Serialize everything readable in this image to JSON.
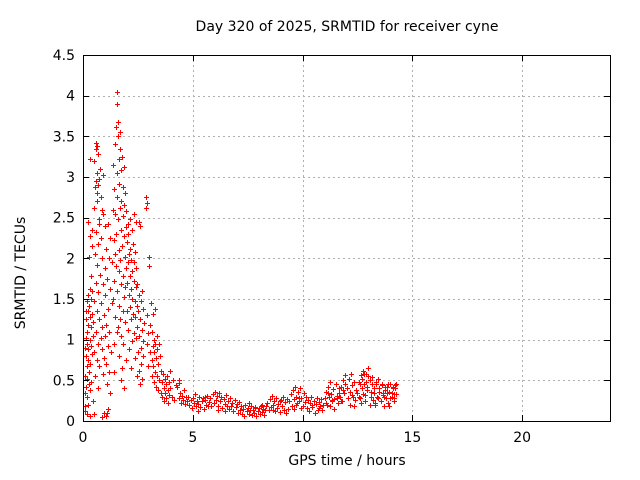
{
  "chart_data": {
    "type": "scatter",
    "title": "Day 320 of 2025, SRMTID for receiver cyne",
    "xlabel": "GPS time / hours",
    "ylabel": "SRMTID / TECUs",
    "xlim": [
      0,
      24
    ],
    "ylim": [
      0,
      4.5
    ],
    "xticks": [
      0,
      5,
      10,
      15,
      20
    ],
    "yticks": [
      0,
      0.5,
      1,
      1.5,
      2,
      2.5,
      3,
      3.5,
      4,
      4.5
    ],
    "grid": "dashed",
    "legend": "none",
    "marker": "plus",
    "colors": {
      "marker": "#ff0000",
      "grid": "#b0b0b0",
      "axis": "#000000",
      "background": "#ffffff",
      "text": "#000000"
    },
    "points": [
      [
        0.07,
        0.12
      ],
      [
        0.08,
        0.35
      ],
      [
        0.08,
        0.9
      ],
      [
        0.1,
        0.55
      ],
      [
        0.1,
        0.18
      ],
      [
        0.12,
        0.8
      ],
      [
        0.13,
        1.02
      ],
      [
        0.13,
        1.35
      ],
      [
        0.14,
        0.42
      ],
      [
        0.15,
        1.25
      ],
      [
        0.16,
        0.68
      ],
      [
        0.17,
        1.48
      ],
      [
        0.18,
        0.3
      ],
      [
        0.18,
        0.95
      ],
      [
        0.18,
        0.08
      ],
      [
        0.2,
        1.1
      ],
      [
        0.2,
        0.52
      ],
      [
        0.21,
        0.2
      ],
      [
        0.22,
        1.35
      ],
      [
        0.22,
        0.75
      ],
      [
        0.23,
        1.55
      ],
      [
        0.24,
        2.45
      ],
      [
        0.25,
        0.88
      ],
      [
        0.25,
        1.18
      ],
      [
        0.26,
        0.45
      ],
      [
        0.27,
        0.6
      ],
      [
        0.27,
        1.42
      ],
      [
        0.28,
        2.02
      ],
      [
        0.3,
        1.0
      ],
      [
        0.3,
        0.38
      ],
      [
        0.3,
        0.06
      ],
      [
        0.31,
        1.62
      ],
      [
        0.32,
        1.28
      ],
      [
        0.32,
        2.28
      ],
      [
        0.33,
        0.7
      ],
      [
        0.33,
        3.22
      ],
      [
        0.35,
        1.5
      ],
      [
        0.35,
        0.92
      ],
      [
        0.37,
        1.15
      ],
      [
        0.37,
        1.78
      ],
      [
        0.38,
        0.48
      ],
      [
        0.4,
        1.32
      ],
      [
        0.4,
        2.15
      ],
      [
        0.42,
        0.82
      ],
      [
        0.42,
        2.35
      ],
      [
        0.43,
        1.6
      ],
      [
        0.45,
        1.05
      ],
      [
        0.45,
        0.25
      ],
      [
        0.47,
        1.22
      ],
      [
        0.48,
        2.62
      ],
      [
        0.5,
        0.85
      ],
      [
        0.5,
        3.2
      ],
      [
        0.52,
        1.48
      ],
      [
        0.52,
        0.08
      ],
      [
        0.53,
        2.05
      ],
      [
        0.55,
        0.55
      ],
      [
        0.55,
        2.88
      ],
      [
        0.57,
        1.7
      ],
      [
        0.57,
        3.35
      ],
      [
        0.58,
        2.95
      ],
      [
        0.6,
        1.1
      ],
      [
        0.6,
        2.32
      ],
      [
        0.6,
        3.42
      ],
      [
        0.62,
        0.75
      ],
      [
        0.62,
        3.05
      ],
      [
        0.63,
        1.92
      ],
      [
        0.63,
        2.8
      ],
      [
        0.65,
        1.35
      ],
      [
        0.65,
        2.7
      ],
      [
        0.65,
        3.38
      ],
      [
        0.67,
        0.95
      ],
      [
        0.67,
        2.9
      ],
      [
        0.68,
        1.58
      ],
      [
        0.68,
        3.28
      ],
      [
        0.7,
        2.18
      ],
      [
        0.7,
        0.4
      ],
      [
        0.72,
        2.98
      ],
      [
        0.73,
        1.25
      ],
      [
        0.73,
        2.42
      ],
      [
        0.75,
        2.48
      ],
      [
        0.75,
        0.68
      ],
      [
        0.77,
        3.1
      ],
      [
        0.78,
        1.8
      ],
      [
        0.8,
        1.02
      ],
      [
        0.8,
        2.25
      ],
      [
        0.82,
        2.75
      ],
      [
        0.83,
        1.45
      ],
      [
        0.85,
        2.6
      ],
      [
        0.85,
        0.88
      ],
      [
        0.85,
        0.05
      ],
      [
        0.87,
        2.0
      ],
      [
        0.88,
        1.15
      ],
      [
        0.9,
        2.55
      ],
      [
        0.9,
        0.58
      ],
      [
        0.92,
        1.68
      ],
      [
        0.93,
        3.02
      ],
      [
        0.95,
        1.3
      ],
      [
        0.95,
        0.1
      ],
      [
        0.97,
        0.78
      ],
      [
        0.98,
        1.88
      ],
      [
        1.0,
        2.4
      ],
      [
        1.0,
        1.05
      ],
      [
        1.02,
        1.55
      ],
      [
        1.03,
        0.7
      ],
      [
        1.05,
        2.12
      ],
      [
        1.05,
        0.06
      ],
      [
        1.07,
        1.18
      ],
      [
        1.08,
        0.45
      ],
      [
        1.1,
        1.75
      ],
      [
        1.1,
        0.1
      ],
      [
        1.12,
        2.42
      ],
      [
        1.13,
        0.92
      ],
      [
        1.15,
        1.38
      ],
      [
        1.15,
        0.15
      ],
      [
        1.17,
        0.6
      ],
      [
        1.18,
        2.0
      ],
      [
        1.2,
        1.1
      ],
      [
        1.22,
        1.62
      ],
      [
        1.23,
        0.35
      ],
      [
        1.25,
        2.25
      ],
      [
        1.27,
        0.85
      ],
      [
        1.3,
        1.45
      ],
      [
        1.33,
        1.95
      ],
      [
        1.35,
        2.6
      ],
      [
        1.37,
        1.5
      ],
      [
        1.38,
        3.15
      ],
      [
        1.4,
        2.22
      ],
      [
        1.4,
        0.95
      ],
      [
        1.42,
        2.85
      ],
      [
        1.43,
        1.72
      ],
      [
        1.43,
        0.6
      ],
      [
        1.45,
        3.4
      ],
      [
        1.45,
        2.05
      ],
      [
        1.47,
        1.28
      ],
      [
        1.48,
        2.55
      ],
      [
        1.5,
        3.62
      ],
      [
        1.5,
        1.9
      ],
      [
        1.52,
        2.3
      ],
      [
        1.53,
        3.05
      ],
      [
        1.53,
        1.1
      ],
      [
        1.55,
        1.6
      ],
      [
        1.55,
        4.05
      ],
      [
        1.57,
        2.75
      ],
      [
        1.57,
        3.9
      ],
      [
        1.58,
        1.15
      ],
      [
        1.58,
        3.5
      ],
      [
        1.6,
        2.48
      ],
      [
        1.6,
        3.68
      ],
      [
        1.62,
        1.85
      ],
      [
        1.62,
        3.22
      ],
      [
        1.63,
        2.1
      ],
      [
        1.63,
        0.8
      ],
      [
        1.65,
        2.92
      ],
      [
        1.65,
        1.42
      ],
      [
        1.67,
        3.55
      ],
      [
        1.68,
        2.62
      ],
      [
        1.68,
        1.25
      ],
      [
        1.7,
        1.98
      ],
      [
        1.7,
        3.35
      ],
      [
        1.72,
        2.35
      ],
      [
        1.72,
        1.05
      ],
      [
        1.73,
        3.08
      ],
      [
        1.75,
        2.7
      ],
      [
        1.75,
        1.68
      ],
      [
        1.77,
        2.15
      ],
      [
        1.78,
        3.25
      ],
      [
        1.8,
        1.35
      ],
      [
        1.8,
        2.88
      ],
      [
        1.82,
        2.52
      ],
      [
        1.83,
        1.78
      ],
      [
        1.85,
        3.12
      ],
      [
        1.85,
        2.28
      ],
      [
        1.87,
        1.52
      ],
      [
        1.88,
        2.65
      ],
      [
        1.88,
        0.4
      ],
      [
        1.9,
        2.02
      ],
      [
        1.9,
        1.22
      ],
      [
        1.92,
        2.8
      ],
      [
        1.93,
        1.65
      ],
      [
        1.95,
        2.38
      ],
      [
        1.95,
        0.75
      ],
      [
        1.78,
        0.65
      ],
      [
        1.83,
        0.95
      ],
      [
        1.73,
        0.5
      ],
      [
        1.97,
        1.88
      ],
      [
        1.98,
        2.58
      ],
      [
        2.0,
        1.35
      ],
      [
        2.0,
        2.2
      ],
      [
        2.02,
        1.7
      ],
      [
        2.03,
        2.42
      ],
      [
        2.05,
        1.12
      ],
      [
        2.05,
        1.95
      ],
      [
        2.07,
        2.3
      ],
      [
        2.08,
        1.55
      ],
      [
        2.1,
        2.05
      ],
      [
        2.1,
        0.88
      ],
      [
        2.12,
        1.78
      ],
      [
        2.13,
        2.48
      ],
      [
        2.15,
        1.4
      ],
      [
        2.15,
        2.12
      ],
      [
        2.17,
        1.62
      ],
      [
        2.18,
        0.65
      ],
      [
        2.2,
        1.98
      ],
      [
        2.2,
        1.25
      ],
      [
        2.22,
        2.35
      ],
      [
        2.23,
        1.5
      ],
      [
        2.25,
        1.85
      ],
      [
        2.25,
        0.98
      ],
      [
        2.27,
        2.18
      ],
      [
        2.28,
        1.32
      ],
      [
        2.3,
        1.72
      ],
      [
        2.3,
        2.55
      ],
      [
        2.32,
        1.08
      ],
      [
        2.33,
        1.95
      ],
      [
        2.35,
        1.48
      ],
      [
        2.35,
        0.78
      ],
      [
        2.37,
        2.08
      ],
      [
        2.38,
        1.28
      ],
      [
        2.4,
        1.65
      ],
      [
        2.4,
        2.45
      ],
      [
        2.42,
        1.02
      ],
      [
        2.43,
        1.88
      ],
      [
        2.45,
        1.42
      ],
      [
        2.45,
        0.55
      ],
      [
        2.47,
        1.15
      ],
      [
        2.48,
        1.68
      ],
      [
        2.5,
        0.85
      ],
      [
        2.52,
        1.35
      ],
      [
        2.53,
        0.62
      ],
      [
        2.55,
        1.55
      ],
      [
        2.55,
        2.45
      ],
      [
        2.57,
        1.05
      ],
      [
        2.58,
        0.45
      ],
      [
        2.6,
        1.25
      ],
      [
        2.6,
        2.4
      ],
      [
        2.62,
        0.9
      ],
      [
        2.63,
        1.48
      ],
      [
        2.65,
        0.7
      ],
      [
        2.67,
        1.12
      ],
      [
        2.68,
        1.6
      ],
      [
        2.7,
        0.52
      ],
      [
        2.72,
        0.98
      ],
      [
        2.73,
        1.38
      ],
      [
        2.75,
        0.8
      ],
      [
        2.77,
        1.2
      ],
      [
        2.85,
        2.62
      ],
      [
        2.88,
        2.75
      ],
      [
        2.9,
        2.68
      ],
      [
        2.92,
        0.95
      ],
      [
        2.93,
        1.3
      ],
      [
        2.95,
        0.68
      ],
      [
        2.97,
        1.08
      ],
      [
        3.0,
        1.9
      ],
      [
        3.02,
        2.02
      ],
      [
        3.05,
        0.85
      ],
      [
        3.07,
        1.18
      ],
      [
        3.1,
        1.45
      ],
      [
        3.12,
        0.75
      ],
      [
        3.13,
        1.1
      ],
      [
        3.15,
        0.55
      ],
      [
        3.17,
        0.92
      ],
      [
        3.18,
        1.32
      ],
      [
        3.2,
        0.68
      ],
      [
        3.22,
        1.0
      ],
      [
        3.23,
        0.48
      ],
      [
        3.25,
        0.85
      ],
      [
        3.27,
        1.38
      ],
      [
        3.28,
        0.6
      ],
      [
        3.3,
        0.95
      ],
      [
        3.32,
        0.42
      ],
      [
        3.33,
        0.78
      ],
      [
        3.35,
        1.05
      ],
      [
        3.37,
        0.55
      ],
      [
        3.38,
        0.88
      ],
      [
        3.4,
        0.38
      ],
      [
        3.42,
        0.7
      ],
      [
        3.45,
        0.95
      ],
      [
        3.48,
        0.5
      ],
      [
        3.5,
        0.8
      ],
      [
        3.53,
        0.35
      ],
      [
        3.57,
        0.62
      ],
      [
        3.6,
        0.48
      ],
      [
        3.62,
        0.3
      ],
      [
        3.65,
        0.58
      ],
      [
        3.68,
        0.4
      ],
      [
        3.7,
        0.25
      ],
      [
        3.73,
        0.52
      ],
      [
        3.75,
        0.35
      ],
      [
        3.78,
        0.45
      ],
      [
        3.8,
        0.28
      ],
      [
        3.83,
        0.55
      ],
      [
        3.85,
        0.38
      ],
      [
        3.88,
        0.22
      ],
      [
        3.9,
        0.48
      ],
      [
        3.93,
        0.32
      ],
      [
        3.95,
        0.62
      ],
      [
        3.98,
        0.4
      ],
      [
        4.05,
        0.3
      ],
      [
        4.1,
        0.5
      ],
      [
        4.15,
        0.26
      ],
      [
        4.22,
        0.44
      ],
      [
        4.35,
        0.5
      ],
      [
        4.38,
        0.47
      ],
      [
        5.25,
        0.12
      ],
      [
        5.55,
        0.3
      ],
      [
        6.15,
        0.14
      ],
      [
        6.45,
        0.12
      ],
      [
        7.55,
        0.22
      ],
      [
        7.85,
        0.16
      ],
      [
        8.15,
        0.2
      ],
      [
        8.65,
        0.14
      ],
      [
        8.95,
        0.24
      ],
      [
        9.62,
        0.15
      ],
      [
        9.72,
        0.2
      ],
      [
        9.82,
        0.28
      ],
      [
        9.92,
        0.16
      ],
      [
        10.45,
        0.2
      ],
      [
        10.75,
        0.16
      ],
      [
        11.05,
        0.22
      ],
      [
        11.15,
        0.35
      ],
      [
        11.25,
        0.18
      ],
      [
        11.35,
        0.26
      ],
      [
        11.45,
        0.15
      ],
      [
        11.55,
        0.28
      ],
      [
        11.65,
        0.4
      ],
      [
        11.75,
        0.25
      ],
      [
        11.85,
        0.38
      ],
      [
        11.95,
        0.45
      ],
      [
        12.05,
        0.28
      ],
      [
        12.15,
        0.2
      ],
      [
        12.25,
        0.32
      ],
      [
        12.35,
        0.18
      ],
      [
        12.55,
        0.3
      ],
      [
        12.6,
        0.45
      ],
      [
        12.65,
        0.22
      ],
      [
        12.7,
        0.52
      ],
      [
        12.75,
        0.33
      ],
      [
        12.8,
        0.58
      ],
      [
        12.85,
        0.25
      ],
      [
        12.9,
        0.48
      ],
      [
        12.95,
        0.38
      ],
      [
        13.0,
        0.55
      ],
      [
        13.05,
        0.2
      ],
      [
        13.1,
        0.3
      ],
      [
        13.15,
        0.45
      ],
      [
        13.25,
        0.35
      ],
      [
        13.3,
        0.22
      ],
      [
        13.35,
        0.48
      ],
      [
        13.45,
        0.28
      ],
      [
        13.5,
        0.4
      ],
      [
        13.55,
        0.25
      ],
      [
        13.6,
        0.45
      ],
      [
        13.65,
        0.35
      ],
      [
        13.7,
        0.3
      ],
      [
        13.75,
        0.42
      ],
      [
        13.85,
        0.35
      ],
      [
        13.9,
        0.45
      ],
      [
        13.95,
        0.18
      ],
      [
        14.0,
        0.28
      ],
      [
        14.05,
        0.35
      ],
      [
        14.1,
        0.42
      ],
      [
        14.15,
        0.28
      ],
      [
        14.18,
        0.33
      ],
      [
        14.22,
        0.4
      ],
      [
        14.25,
        0.45
      ]
    ],
    "band": {
      "x0": 4.3,
      "dx": 0.05,
      "y": [
        0.42,
        0.28,
        0.35,
        0.22,
        0.31,
        0.26,
        0.38,
        0.21,
        0.29,
        0.24,
        0.3,
        0.2,
        0.26,
        0.16,
        0.28,
        0.22,
        0.33,
        0.18,
        0.25,
        0.21,
        0.3,
        0.17,
        0.24,
        0.28,
        0.15,
        0.26,
        0.2,
        0.31,
        0.18,
        0.23,
        0.28,
        0.19,
        0.33,
        0.22,
        0.36,
        0.26,
        0.31,
        0.18,
        0.35,
        0.24,
        0.29,
        0.16,
        0.27,
        0.21,
        0.32,
        0.19,
        0.25,
        0.15,
        0.28,
        0.18,
        0.22,
        0.12,
        0.26,
        0.17,
        0.21,
        0.1,
        0.23,
        0.14,
        0.18,
        0.09,
        0.15,
        0.06,
        0.2,
        0.12,
        0.16,
        0.08,
        0.13,
        0.19,
        0.07,
        0.14,
        0.1,
        0.17,
        0.06,
        0.12,
        0.16,
        0.09,
        0.19,
        0.11,
        0.15,
        0.07,
        0.13,
        0.18,
        0.22,
        0.13,
        0.27,
        0.17,
        0.31,
        0.2,
        0.24,
        0.12,
        0.28,
        0.16,
        0.21,
        0.11,
        0.26,
        0.18,
        0.3,
        0.14,
        0.23,
        0.1,
        0.27,
        0.15,
        0.24,
        0.33,
        0.18,
        0.38,
        0.27,
        0.42,
        0.3,
        0.22,
        0.36,
        0.25,
        0.4,
        0.28,
        0.19,
        0.34,
        0.23,
        0.29,
        0.16,
        0.26,
        0.12,
        0.22,
        0.3,
        0.17,
        0.24,
        0.1,
        0.21,
        0.28,
        0.14,
        0.23,
        0.18,
        0.27,
        0.13,
        0.2,
        0.28,
        0.36,
        0.2,
        0.42,
        0.3,
        0.48,
        0.33,
        0.24,
        0.39,
        0.27,
        0.45,
        0.31,
        0.22,
        0.35,
        0.3,
        0.42,
        0.24,
        0.5,
        0.34,
        0.56,
        0.4,
        0.28,
        0.52,
        0.36,
        0.58,
        0.44,
        0.3,
        0.48,
        0.26,
        0.38,
        0.35,
        0.48,
        0.28,
        0.56,
        0.4,
        0.62,
        0.46,
        0.32,
        0.58,
        0.42,
        0.65,
        0.5,
        0.36,
        0.54,
        0.26,
        0.4,
        0.2,
        0.46,
        0.3,
        0.52,
        0.36,
        0.24,
        0.44,
        0.32,
        0.18,
        0.38,
        0.28,
        0.42,
        0.22,
        0.36,
        0.46,
        0.3,
        0.4,
        0.25,
        0.44,
        0.33
      ]
    }
  }
}
